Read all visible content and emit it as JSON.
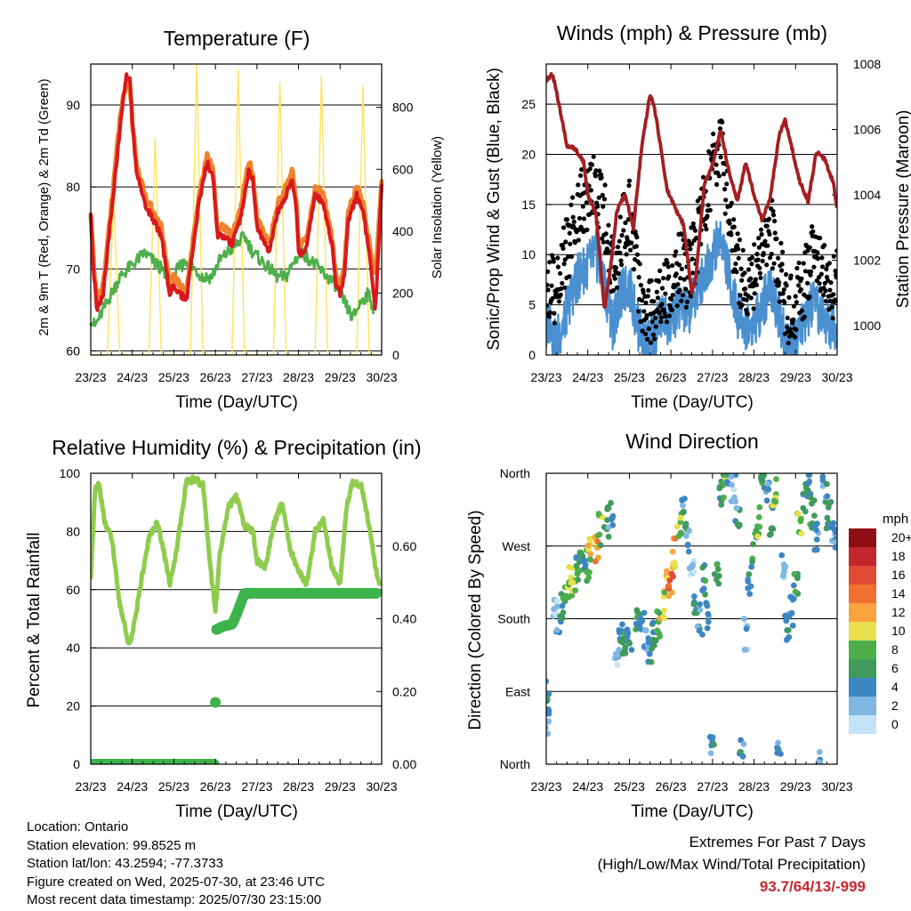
{
  "info": {
    "location": "Location: Ontario",
    "elevation": "Station elevation: 99.8525 m",
    "latlon": "Station lat/lon: 43.2594; -77.3733",
    "created": "Figure created on Wed, 2025-07-30, at 23:46 UTC",
    "recent": "Most recent data timestamp: 2025/07/30 23:15:00"
  },
  "extremes": {
    "title": "Extremes For Past 7 Days",
    "subtitle": "(High/Low/Max Wind/Total Precipitation)",
    "values": "93.7/64/13/-999"
  },
  "colors": {
    "temp2m": "#d7191c",
    "temp9m": "#f0822d",
    "dewpoint": "#4daf4a",
    "solar": "#ffe35c",
    "gust": "#000000",
    "wind": "#4a90d0",
    "pressure": "#a31f23",
    "rh": "#8fcc4e",
    "rain": "#3cb44b"
  },
  "chart_data": [
    {
      "type": "line",
      "title": "Temperature (F)",
      "xlabel": "Time (Day/UTC)",
      "ylabel": "2m & 9m T (Red, Orange) & 2m Td (Green)",
      "y2label": "Solar Insolation (Yellow)",
      "xticks": [
        "23/23",
        "24/23",
        "25/23",
        "26/23",
        "27/23",
        "28/23",
        "29/23",
        "30/23"
      ],
      "xlim": [
        0,
        7
      ],
      "ylim": [
        59.5,
        95
      ],
      "yticks": [
        60,
        70,
        80,
        90
      ],
      "y2lim": [
        0,
        940
      ],
      "y2ticks": [
        0,
        200,
        400,
        600,
        800
      ],
      "grid": "horizontal",
      "series": [
        {
          "key": "temp9m",
          "x": [
            0,
            0.05,
            0.15,
            0.3,
            0.5,
            0.7,
            0.85,
            0.95,
            1.0,
            1.1,
            1.3,
            1.5,
            1.7,
            1.9,
            2.0,
            2.15,
            2.3,
            2.6,
            2.8,
            2.95,
            3.05,
            3.1,
            3.2,
            3.4,
            3.6,
            3.8,
            3.9,
            4.0,
            4.1,
            4.3,
            4.5,
            4.7,
            4.85,
            4.95,
            5.0,
            5.1,
            5.2,
            5.4,
            5.6,
            5.8,
            5.9,
            6.0,
            6.1,
            6.2,
            6.4,
            6.55,
            6.7,
            6.85,
            7.0
          ],
          "values": [
            77,
            72,
            66,
            68,
            78,
            88,
            93,
            92,
            88,
            83,
            79,
            77,
            75,
            68,
            69,
            68,
            67,
            79,
            84,
            82,
            75,
            75,
            75,
            74,
            77,
            83,
            82,
            76,
            75,
            73,
            78,
            80,
            82,
            78,
            73,
            73,
            74,
            80,
            79,
            74,
            69,
            68,
            70,
            77,
            80,
            78,
            73,
            69,
            81
          ]
        },
        {
          "key": "temp2m",
          "x": [
            0,
            0.05,
            0.15,
            0.3,
            0.5,
            0.7,
            0.85,
            0.95,
            1.0,
            1.1,
            1.3,
            1.5,
            1.7,
            1.9,
            2.0,
            2.15,
            2.3,
            2.6,
            2.8,
            2.95,
            3.05,
            3.1,
            3.2,
            3.4,
            3.6,
            3.8,
            3.9,
            4.0,
            4.1,
            4.3,
            4.5,
            4.7,
            4.85,
            4.95,
            5.0,
            5.1,
            5.2,
            5.4,
            5.6,
            5.8,
            5.9,
            6.0,
            6.1,
            6.2,
            6.4,
            6.55,
            6.7,
            6.85,
            7.0
          ],
          "values": [
            77,
            71,
            65,
            67,
            77,
            87,
            93.7,
            93,
            88,
            82,
            78,
            76,
            74,
            67,
            68,
            67,
            66,
            78,
            83,
            81,
            74,
            74,
            74,
            73,
            76,
            82,
            81,
            75,
            74,
            72,
            77,
            79,
            81,
            77,
            72,
            72,
            73,
            79,
            78,
            73,
            68,
            67,
            69,
            76,
            79,
            77,
            72,
            65,
            80
          ]
        },
        {
          "key": "dewpoint",
          "x": [
            0,
            0.1,
            0.3,
            0.5,
            0.7,
            0.9,
            1.1,
            1.3,
            1.5,
            1.7,
            1.9,
            2.1,
            2.3,
            2.5,
            2.7,
            2.9,
            3.1,
            3.3,
            3.5,
            3.7,
            3.9,
            4.1,
            4.3,
            4.5,
            4.7,
            4.9,
            5.1,
            5.3,
            5.5,
            5.7,
            5.9,
            6.1,
            6.3,
            6.5,
            6.7,
            6.8
          ],
          "values": [
            64,
            63,
            65,
            67,
            69,
            70,
            71,
            72,
            71,
            70,
            68,
            70,
            71,
            70,
            69,
            69,
            71,
            72,
            73,
            74,
            72,
            71,
            70,
            69,
            69,
            71,
            72,
            71,
            70,
            69,
            68,
            66,
            64,
            66,
            67,
            65
          ]
        },
        {
          "key": "solar",
          "x": [
            0,
            0.1,
            0.4,
            0.55,
            0.7,
            1.0,
            1.1,
            1.4,
            1.55,
            1.7,
            2.0,
            2.1,
            2.4,
            2.55,
            2.7,
            3.0,
            3.1,
            3.4,
            3.55,
            3.7,
            4.0,
            4.1,
            4.4,
            4.55,
            4.7,
            5.0,
            5.1,
            5.4,
            5.55,
            5.7,
            6.0,
            6.1,
            6.4,
            6.55,
            6.7,
            7.0
          ],
          "y2values": [
            0,
            0,
            0,
            520,
            0,
            0,
            0,
            0,
            700,
            0,
            0,
            0,
            0,
            940,
            0,
            0,
            0,
            0,
            920,
            0,
            0,
            0,
            0,
            880,
            0,
            0,
            0,
            0,
            900,
            0,
            0,
            0,
            0,
            870,
            0,
            0
          ]
        }
      ]
    },
    {
      "type": "line",
      "title": "Winds (mph) & Pressure (mb)",
      "xlabel": "Time (Day/UTC)",
      "ylabel": "Sonic/Prop Wind & Gust (Blue, Black)",
      "y2label": "Station Pressure (Maroon)",
      "xticks": [
        "23/23",
        "24/23",
        "25/23",
        "26/23",
        "27/23",
        "28/23",
        "29/23",
        "30/23"
      ],
      "xlim": [
        0,
        7
      ],
      "ylim": [
        0,
        29
      ],
      "yticks": [
        0,
        5,
        10,
        15,
        20,
        25
      ],
      "y2lim": [
        999.1,
        1008
      ],
      "y2ticks": [
        1000,
        1002,
        1004,
        1006,
        1008
      ],
      "grid": "horizontal",
      "series": [
        {
          "key": "pressure",
          "x": [
            0,
            0.15,
            0.3,
            0.5,
            0.7,
            0.9,
            1.0,
            1.2,
            1.4,
            1.55,
            1.7,
            1.9,
            2.1,
            2.3,
            2.5,
            2.6,
            2.75,
            2.9,
            3.1,
            3.3,
            3.5,
            3.6,
            3.8,
            4.0,
            4.2,
            4.4,
            4.6,
            4.8,
            5.0,
            5.2,
            5.4,
            5.6,
            5.75,
            5.9,
            6.1,
            6.3,
            6.5,
            6.7,
            6.9,
            7.0
          ],
          "y2values": [
            1007.5,
            1007.7,
            1006.8,
            1005.5,
            1005.4,
            1005.0,
            1004.0,
            1003.4,
            1000.5,
            1001.8,
            1003.5,
            1004.0,
            1003.0,
            1005.5,
            1007.1,
            1006.7,
            1005.5,
            1004.2,
            1003.6,
            1003.1,
            1001.0,
            1001.5,
            1004.3,
            1004.9,
            1006.0,
            1004.7,
            1003.8,
            1005.0,
            1004.0,
            1003.2,
            1004.0,
            1005.8,
            1006.3,
            1005.5,
            1004.4,
            1003.8,
            1005.3,
            1005.1,
            1004.4,
            1003.6
          ]
        },
        {
          "key": "wind",
          "x": [
            0,
            0.1,
            0.2,
            0.4,
            0.6,
            0.8,
            1.0,
            1.2,
            1.4,
            1.6,
            1.8,
            2.0,
            2.2,
            2.4,
            2.6,
            2.8,
            3.0,
            3.2,
            3.4,
            3.6,
            3.8,
            4.0,
            4.2,
            4.4,
            4.6,
            4.8,
            5.0,
            5.2,
            5.4,
            5.6,
            5.8,
            6.0,
            6.2,
            6.4,
            6.6,
            6.8,
            7.0
          ],
          "values": [
            2,
            4,
            1,
            3,
            6,
            8,
            9,
            10,
            7,
            3,
            6,
            7,
            3,
            1,
            2,
            4,
            3,
            5,
            4,
            6,
            8,
            10,
            12,
            8,
            4,
            3,
            3,
            5,
            7,
            4,
            1,
            2,
            3,
            5,
            4,
            3,
            3
          ]
        },
        {
          "key": "gust",
          "x": [
            0,
            0.1,
            0.2,
            0.4,
            0.6,
            0.8,
            1.0,
            1.2,
            1.4,
            1.6,
            1.8,
            2.0,
            2.2,
            2.4,
            2.6,
            2.8,
            3.0,
            3.2,
            3.4,
            3.6,
            3.8,
            4.0,
            4.2,
            4.4,
            4.6,
            4.8,
            5.0,
            5.2,
            5.4,
            5.6,
            5.8,
            6.0,
            6.2,
            6.4,
            6.6,
            6.8,
            7.0
          ],
          "values": [
            5,
            7,
            6,
            9,
            12,
            15,
            16,
            17,
            14,
            8,
            12,
            14,
            8,
            4,
            5,
            7,
            6,
            9,
            8,
            11,
            15,
            19,
            21,
            14,
            9,
            7,
            8,
            10,
            13,
            9,
            4,
            5,
            7,
            10,
            9,
            6,
            7
          ]
        }
      ]
    },
    {
      "type": "line",
      "title": "Relative Humidity (%) & Precipitation (in)",
      "xlabel": "Time (Day/UTC)",
      "ylabel": "Percent & Total Rainfall",
      "xticks": [
        "23/23",
        "24/23",
        "25/23",
        "26/23",
        "27/23",
        "28/23",
        "29/23",
        "30/23"
      ],
      "xlim": [
        0,
        7
      ],
      "ylim": [
        0,
        100
      ],
      "yticks": [
        0,
        20,
        40,
        60,
        80,
        100
      ],
      "y2lim": [
        0,
        0.8
      ],
      "y2ticks": [
        "0.00",
        "0.20",
        "0.40",
        "0.60"
      ],
      "grid": "horizontal",
      "series": [
        {
          "key": "rh",
          "x": [
            0,
            0.1,
            0.2,
            0.35,
            0.5,
            0.7,
            0.9,
            1.0,
            1.2,
            1.4,
            1.6,
            1.8,
            1.9,
            2.0,
            2.15,
            2.3,
            2.5,
            2.7,
            2.9,
            3.0,
            3.1,
            3.3,
            3.5,
            3.7,
            3.9,
            4.0,
            4.2,
            4.4,
            4.6,
            4.8,
            5.0,
            5.2,
            5.4,
            5.6,
            5.8,
            6.0,
            6.15,
            6.3,
            6.5,
            6.7,
            6.85,
            6.95
          ],
          "values": [
            63,
            94,
            96,
            82,
            78,
            55,
            42,
            44,
            62,
            78,
            83,
            70,
            62,
            68,
            82,
            97,
            98,
            96,
            65,
            52,
            72,
            88,
            92,
            82,
            80,
            70,
            68,
            82,
            90,
            74,
            66,
            62,
            80,
            84,
            68,
            62,
            88,
            97,
            96,
            82,
            68,
            61
          ]
        },
        {
          "key": "rain",
          "x": [
            0,
            0.5,
            1.0,
            1.5,
            2.0,
            2.5,
            2.98,
            3.0,
            3.02,
            3.2,
            3.4,
            3.5,
            3.7,
            4.0,
            4.5,
            5.0,
            5.5,
            6.0,
            6.5,
            6.9
          ],
          "y2values": [
            0,
            0,
            0,
            0,
            0,
            0,
            0,
            0.17,
            0.37,
            0.38,
            0.385,
            0.41,
            0.47,
            0.47,
            0.47,
            0.47,
            0.47,
            0.47,
            0.47,
            0.47
          ]
        }
      ]
    },
    {
      "type": "scatter",
      "title": "Wind Direction",
      "xlabel": "Time (Day/UTC)",
      "ylabel": "Direction (Colored By Speed)",
      "xticks": [
        "23/23",
        "24/23",
        "25/23",
        "26/23",
        "27/23",
        "28/23",
        "29/23",
        "30/23"
      ],
      "xlim": [
        0,
        7
      ],
      "ylim": [
        0,
        360
      ],
      "yticks": [
        "North",
        "East",
        "South",
        "West",
        "North"
      ],
      "grid": "horizontal",
      "legend": {
        "position": "right",
        "unit": "mph",
        "labels": [
          "20+",
          "18",
          "16",
          "14",
          "12",
          "10",
          "8",
          "6",
          "4",
          "2",
          "0"
        ],
        "colors": [
          "#8e0e14",
          "#c4262e",
          "#e14a33",
          "#f07030",
          "#f9a33f",
          "#e8e04c",
          "#4daf4a",
          "#3f9a5c",
          "#3d86c4",
          "#7fb6e2",
          "#c3e3f7"
        ]
      },
      "points": {
        "x": [
          0.02,
          0.05,
          0.2,
          0.3,
          0.4,
          0.5,
          0.6,
          0.7,
          0.75,
          0.85,
          0.95,
          1.0,
          1.05,
          1.2,
          1.3,
          1.45,
          1.55,
          1.7,
          1.8,
          1.9,
          2.0,
          2.2,
          2.3,
          2.4,
          2.5,
          2.6,
          2.7,
          2.8,
          2.9,
          3.0,
          3.1,
          3.2,
          3.3,
          3.4,
          3.5,
          3.6,
          3.7,
          3.8,
          3.9,
          4.0,
          4.1,
          4.2,
          4.3,
          4.4,
          4.5,
          4.6,
          4.7,
          4.8,
          4.9,
          5.0,
          5.1,
          5.2,
          5.3,
          5.4,
          5.5,
          5.6,
          5.7,
          5.8,
          5.9,
          6.0,
          6.1,
          6.2,
          6.3,
          6.4,
          6.5,
          6.6,
          6.7,
          6.8,
          6.9,
          7.0
        ],
        "dir": [
          85,
          50,
          185,
          180,
          200,
          210,
          225,
          230,
          240,
          250,
          235,
          250,
          260,
          270,
          290,
          300,
          310,
          130,
          170,
          150,
          160,
          180,
          170,
          150,
          140,
          160,
          170,
          200,
          220,
          230,
          260,
          290,
          310,
          280,
          240,
          200,
          180,
          230,
          180,
          20,
          240,
          330,
          350,
          355,
          340,
          300,
          20,
          160,
          230,
          270,
          300,
          350,
          330,
          300,
          340,
          15,
          250,
          170,
          190,
          230,
          300,
          330,
          350,
          310,
          280,
          5,
          340,
          310,
          290,
          270
        ],
        "speed": [
          4,
          3,
          2,
          4,
          6,
          8,
          10,
          8,
          6,
          6,
          4,
          8,
          10,
          12,
          8,
          6,
          4,
          2,
          4,
          6,
          4,
          6,
          4,
          2,
          4,
          6,
          8,
          10,
          12,
          14,
          12,
          8,
          4,
          4,
          2,
          6,
          4,
          6,
          4,
          4,
          6,
          6,
          8,
          4,
          2,
          4,
          4,
          2,
          4,
          6,
          8,
          6,
          4,
          6,
          8,
          4,
          2,
          4,
          4,
          6,
          8,
          6,
          4,
          6,
          4,
          2,
          4,
          6,
          4,
          4
        ]
      }
    }
  ]
}
